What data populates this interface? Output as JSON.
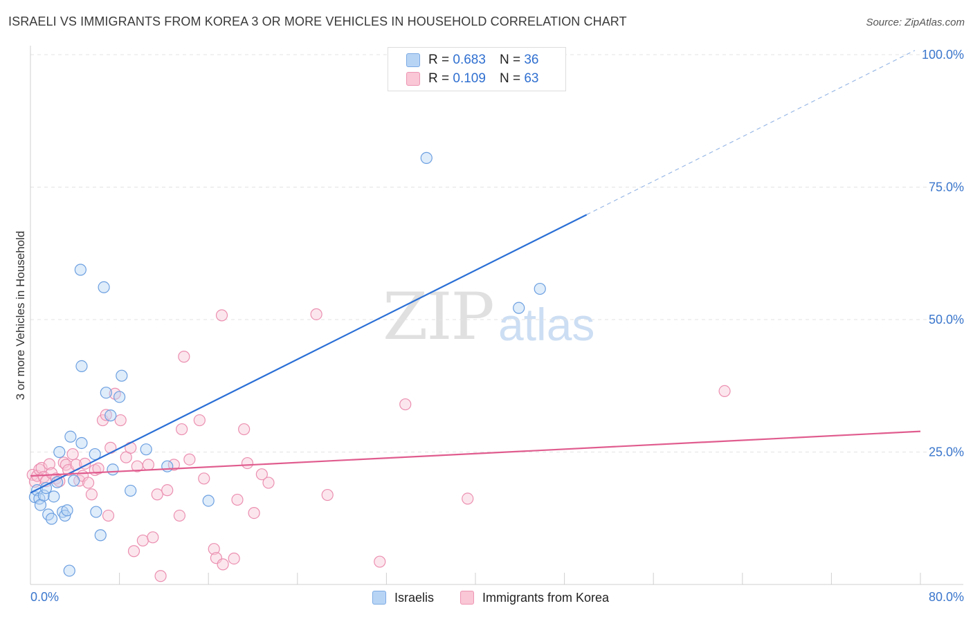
{
  "title": "ISRAELI VS IMMIGRANTS FROM KOREA 3 OR MORE VEHICLES IN HOUSEHOLD CORRELATION CHART",
  "source": "Source: ZipAtlas.com",
  "legend": {
    "r_label": "R =",
    "n_label": "N =",
    "israelis": {
      "r": "0.683",
      "n": "36"
    },
    "korea": {
      "r": "0.109",
      "n": "63"
    }
  },
  "watermark": {
    "zip": "ZIP",
    "atlas": "atlas"
  },
  "colors": {
    "blue": "#2a6fd6",
    "pink": "#e05c8e",
    "blue_fill": "#b8d4f5",
    "pink_fill": "#f9c7d6"
  },
  "chart_data": {
    "type": "scatter",
    "title": "ISRAELI VS IMMIGRANTS FROM KOREA 3 OR MORE VEHICLES IN HOUSEHOLD CORRELATION CHART",
    "xlabel": "",
    "ylabel": "3 or more Vehicles in Household",
    "xlim": [
      0,
      80
    ],
    "ylim": [
      0,
      100
    ],
    "x_tick_labels": [
      "0.0%",
      "80.0%"
    ],
    "y_ticks": [
      25,
      50,
      75,
      100
    ],
    "y_tick_labels": [
      "25.0%",
      "50.0%",
      "75.0%",
      "100.0%"
    ],
    "grid": true,
    "legend_position": "top-center",
    "series": [
      {
        "name": "Israelis",
        "color": "#2a6fd6",
        "points": [
          [
            0.4,
            16.5
          ],
          [
            0.6,
            17.8
          ],
          [
            0.8,
            16.2
          ],
          [
            0.9,
            15.0
          ],
          [
            1.2,
            16.8
          ],
          [
            1.4,
            18.2
          ],
          [
            1.6,
            13.2
          ],
          [
            1.9,
            12.4
          ],
          [
            2.1,
            16.6
          ],
          [
            2.4,
            19.3
          ],
          [
            2.6,
            25.0
          ],
          [
            2.9,
            13.7
          ],
          [
            3.1,
            13.0
          ],
          [
            3.3,
            14.0
          ],
          [
            3.5,
            2.6
          ],
          [
            3.9,
            19.6
          ],
          [
            4.6,
            26.7
          ],
          [
            3.6,
            27.9
          ],
          [
            4.5,
            59.4
          ],
          [
            4.6,
            41.2
          ],
          [
            5.9,
            13.7
          ],
          [
            6.8,
            36.2
          ],
          [
            7.2,
            31.9
          ],
          [
            8.0,
            35.4
          ],
          [
            8.2,
            39.4
          ],
          [
            7.4,
            21.7
          ],
          [
            6.3,
            9.3
          ],
          [
            6.6,
            56.1
          ],
          [
            9.0,
            17.7
          ],
          [
            10.4,
            25.5
          ],
          [
            12.3,
            22.3
          ],
          [
            16.0,
            15.8
          ],
          [
            5.8,
            24.6
          ],
          [
            35.6,
            80.5
          ],
          [
            43.9,
            52.2
          ],
          [
            45.8,
            55.8
          ]
        ],
        "trend": {
          "x0": 0,
          "y0": 17.3,
          "x1": 50,
          "y1": 69.8,
          "dash_x1": 79.5,
          "dash_y1": 100.8
        }
      },
      {
        "name": "Immigrants from Korea",
        "color": "#e05c8e",
        "points": [
          [
            0.2,
            20.7
          ],
          [
            0.4,
            19.4
          ],
          [
            0.6,
            20.5
          ],
          [
            0.8,
            21.7
          ],
          [
            1.0,
            22.0
          ],
          [
            1.2,
            20.3
          ],
          [
            1.4,
            19.5
          ],
          [
            1.7,
            22.7
          ],
          [
            1.9,
            21.0
          ],
          [
            2.3,
            20.0
          ],
          [
            2.6,
            19.5
          ],
          [
            3.0,
            23.0
          ],
          [
            3.2,
            22.6
          ],
          [
            3.4,
            21.6
          ],
          [
            3.8,
            24.6
          ],
          [
            4.1,
            22.6
          ],
          [
            4.4,
            19.6
          ],
          [
            4.7,
            20.5
          ],
          [
            4.9,
            22.8
          ],
          [
            5.2,
            19.2
          ],
          [
            5.5,
            17.0
          ],
          [
            5.8,
            21.6
          ],
          [
            6.1,
            21.9
          ],
          [
            6.5,
            31.0
          ],
          [
            6.8,
            32.0
          ],
          [
            7.0,
            13.0
          ],
          [
            7.2,
            25.8
          ],
          [
            7.6,
            36.0
          ],
          [
            8.1,
            31.0
          ],
          [
            8.6,
            24.0
          ],
          [
            9.0,
            25.8
          ],
          [
            9.3,
            6.3
          ],
          [
            9.6,
            22.3
          ],
          [
            10.1,
            8.3
          ],
          [
            10.6,
            22.6
          ],
          [
            11.0,
            8.9
          ],
          [
            11.4,
            17.0
          ],
          [
            11.7,
            1.6
          ],
          [
            12.3,
            17.8
          ],
          [
            12.9,
            22.6
          ],
          [
            13.4,
            13.0
          ],
          [
            13.6,
            29.3
          ],
          [
            13.8,
            43.0
          ],
          [
            14.3,
            23.6
          ],
          [
            15.2,
            31.0
          ],
          [
            15.6,
            20.0
          ],
          [
            16.5,
            6.7
          ],
          [
            16.7,
            5.0
          ],
          [
            17.2,
            50.8
          ],
          [
            17.3,
            3.8
          ],
          [
            18.3,
            4.9
          ],
          [
            18.6,
            16.0
          ],
          [
            19.2,
            29.3
          ],
          [
            19.5,
            22.9
          ],
          [
            20.1,
            13.5
          ],
          [
            20.8,
            20.8
          ],
          [
            21.4,
            19.2
          ],
          [
            25.7,
            51.0
          ],
          [
            26.7,
            16.9
          ],
          [
            31.4,
            4.3
          ],
          [
            33.7,
            34.0
          ],
          [
            39.3,
            16.2
          ],
          [
            62.4,
            36.5
          ]
        ],
        "trend": {
          "x0": 0,
          "y0": 20.5,
          "x1": 80,
          "y1": 28.9
        }
      }
    ]
  }
}
